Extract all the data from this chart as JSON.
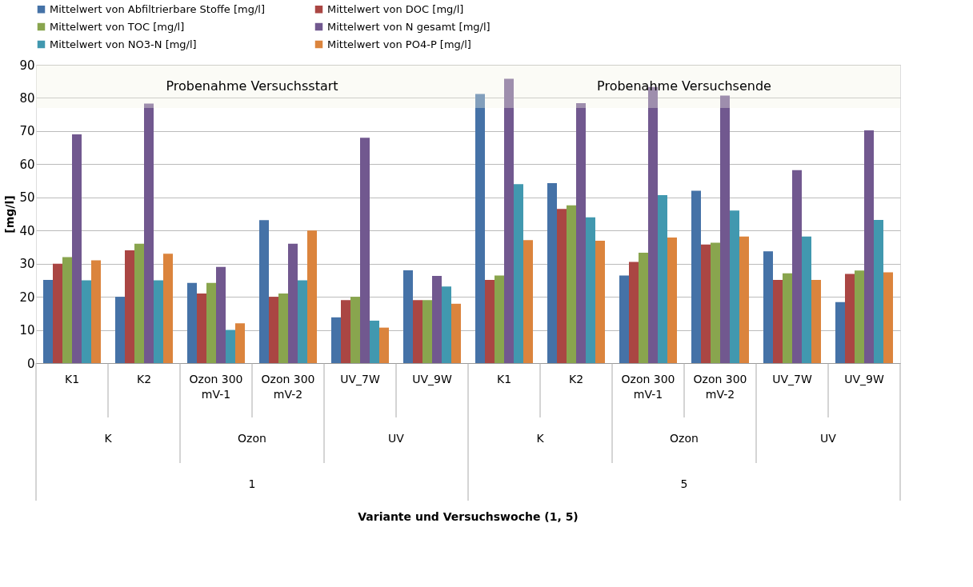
{
  "chart_data": {
    "type": "bar",
    "ylabel": "[mg/l]",
    "categories": [
      "K1",
      "K2",
      "Ozon 300 mV-1",
      "Ozon 300 mV-2",
      "UV_7W",
      "UV_9W",
      "K1",
      "K2",
      "Ozon 300 mV-1",
      "Ozon 300 mV-2",
      "UV_7W",
      "UV_9W"
    ],
    "series": [
      {
        "name": "Mittelwert von Abfiltrierbare Stoffe [mg/l]",
        "color": "#4572a7",
        "values": [
          25.1,
          20,
          24.2,
          43.1,
          13.8,
          28,
          81.2,
          54.3,
          26.4,
          52,
          33.7,
          18.4
        ]
      },
      {
        "name": "Mittelwert von DOC [mg/l]",
        "color": "#aa4643",
        "values": [
          30,
          34,
          21,
          20,
          19,
          19,
          25.1,
          46.5,
          30.5,
          35.8,
          25.1,
          26.9
        ]
      },
      {
        "name": "Mittelwert von TOC [mg/l]",
        "color": "#89a54e",
        "values": [
          32,
          36,
          24.2,
          21,
          20,
          19,
          26.4,
          47.6,
          33.3,
          36.3,
          27.1,
          27.9
        ]
      },
      {
        "name": "Mittelwert von N gesamt [mg/l]",
        "color": "#71588f",
        "values": [
          69,
          78.3,
          29,
          36,
          68,
          26.3,
          85.8,
          78.4,
          83.3,
          80.7,
          58.2,
          70.2
        ]
      },
      {
        "name": "Mittelwert von NO3-N [mg/l]",
        "color": "#4198af",
        "values": [
          25,
          25,
          10,
          25,
          12.8,
          23.1,
          54,
          44,
          50.7,
          46,
          38.2,
          43.2
        ]
      },
      {
        "name": "Mittelwert von PO4-P [mg/l]",
        "color": "#db843d",
        "values": [
          31,
          33,
          12,
          40,
          10.7,
          17.9,
          37.1,
          36.9,
          37.9,
          38.2,
          25.1,
          27.4
        ]
      }
    ],
    "annotations": [
      "K",
      "Ozon",
      "UV",
      "K",
      "Ozon",
      "UV",
      "1",
      "5",
      "Variante und Versuchswoche (1, 5)"
    ],
    "bands": [
      {
        "axis": "y",
        "from": 77,
        "to": 90,
        "label": "Probenahme Versuchsstart",
        "color": "#f3f3e6"
      },
      {
        "axis": "y",
        "from": 77,
        "to": 90,
        "label": "Probenahme Versuchsende",
        "color": "#f3f3e6"
      }
    ],
    "ylim": [
      0,
      90
    ],
    "yticks": [
      0,
      10,
      20,
      30,
      40,
      50,
      60,
      70,
      80,
      90
    ],
    "grid": "y",
    "legend": "top"
  }
}
